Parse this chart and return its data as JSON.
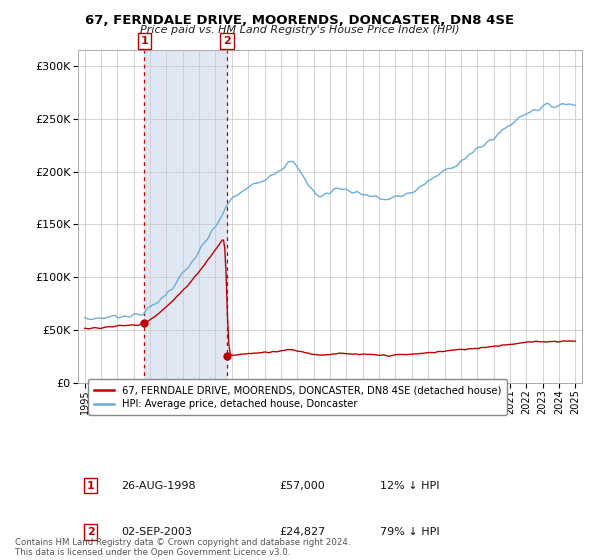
{
  "title": "67, FERNDALE DRIVE, MOORENDS, DONCASTER, DN8 4SE",
  "subtitle": "Price paid vs. HM Land Registry's House Price Index (HPI)",
  "sale1_date": "26-AUG-1998",
  "sale1_price": 57000,
  "sale1_label": "£57,000",
  "sale1_hpi_pct": "12% ↓ HPI",
  "sale2_date": "02-SEP-2003",
  "sale2_price": 24827,
  "sale2_label": "£24,827",
  "sale2_hpi_pct": "79% ↓ HPI",
  "yticks": [
    0,
    50000,
    100000,
    150000,
    200000,
    250000,
    300000
  ],
  "ylim": [
    0,
    315000
  ],
  "xlim_start": 1994.6,
  "xlim_end": 2025.4,
  "sale1_year": 1998.65,
  "sale2_year": 2003.7,
  "hpi_color": "#6baed6",
  "price_color": "#c00000",
  "shaded_region_color": "#dce6f1",
  "grid_color": "#cccccc",
  "background_color": "#ffffff",
  "legend_label_price": "67, FERNDALE DRIVE, MOORENDS, DONCASTER, DN8 4SE (detached house)",
  "legend_label_hpi": "HPI: Average price, detached house, Doncaster",
  "footer": "Contains HM Land Registry data © Crown copyright and database right 2024.\nThis data is licensed under the Open Government Licence v3.0."
}
